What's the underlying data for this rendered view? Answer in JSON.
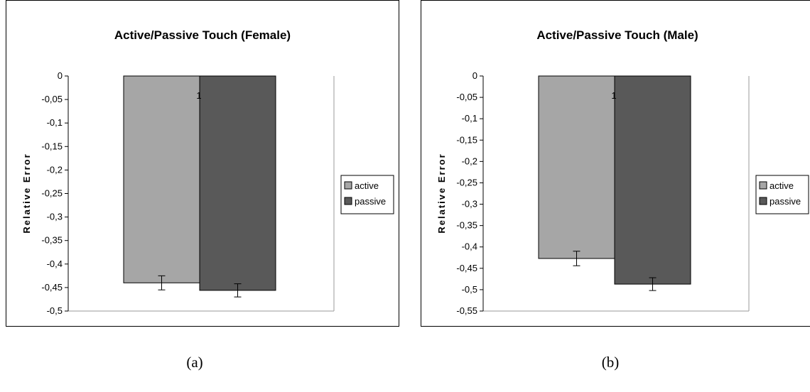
{
  "chart_data": [
    {
      "type": "bar",
      "title": "Active/Passive Touch (Female)",
      "ylabel": "Relative Error",
      "xlabel": "",
      "categories": [
        "1"
      ],
      "ylim": [
        -0.5,
        0
      ],
      "yticks": [
        0,
        -0.05,
        -0.1,
        -0.15,
        -0.2,
        -0.25,
        -0.3,
        -0.35,
        -0.4,
        -0.45,
        -0.5
      ],
      "ytick_labels": [
        "0",
        "-0,05",
        "-0,1",
        "-0,15",
        "-0,2",
        "-0,25",
        "-0,3",
        "-0,35",
        "-0,4",
        "-0,45",
        "-0,5"
      ],
      "series": [
        {
          "name": "active",
          "values": [
            -0.44
          ],
          "error": [
            0.015
          ],
          "color": "#a6a6a6"
        },
        {
          "name": "passive",
          "values": [
            -0.456
          ],
          "error": [
            0.014
          ],
          "color": "#595959"
        }
      ],
      "legend": "right",
      "grid": false,
      "caption": "(a)"
    },
    {
      "type": "bar",
      "title": "Active/Passive Touch (Male)",
      "ylabel": "Relative Error",
      "xlabel": "",
      "categories": [
        "1"
      ],
      "ylim": [
        -0.55,
        0
      ],
      "yticks": [
        0,
        -0.05,
        -0.1,
        -0.15,
        -0.2,
        -0.25,
        -0.3,
        -0.35,
        -0.4,
        -0.45,
        -0.5,
        -0.55
      ],
      "ytick_labels": [
        "0",
        "-0,05",
        "-0,1",
        "-0,15",
        "-0,2",
        "-0,25",
        "-0,3",
        "-0,35",
        "-0,4",
        "-0,45",
        "-0,5",
        "-0,55"
      ],
      "series": [
        {
          "name": "active",
          "values": [
            -0.427
          ],
          "error": [
            0.017
          ],
          "color": "#a6a6a6"
        },
        {
          "name": "passive",
          "values": [
            -0.487
          ],
          "error": [
            0.015
          ],
          "color": "#595959"
        }
      ],
      "legend": "right",
      "grid": false,
      "caption": "(b)"
    }
  ]
}
